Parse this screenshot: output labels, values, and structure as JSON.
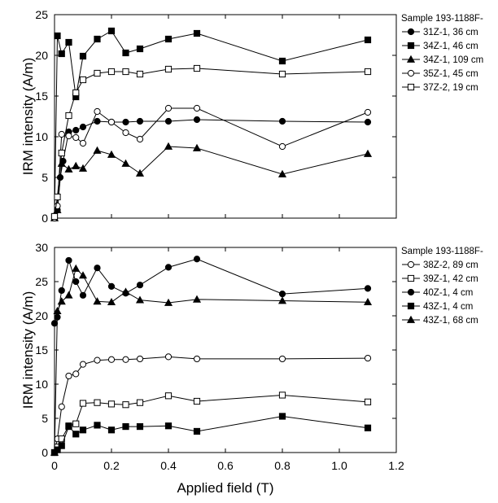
{
  "chart_data": [
    {
      "type": "scatter",
      "xlabel": "",
      "ylabel": "IRM intensity (A/m)",
      "xlim": [
        0,
        1.2
      ],
      "ylim": [
        0,
        25
      ],
      "xticks": [
        0,
        0.2,
        0.4,
        0.6,
        0.8,
        1.0,
        1.2
      ],
      "yticks": [
        0,
        5,
        10,
        15,
        20,
        25
      ],
      "xtick_labels_shown": false,
      "grid": false,
      "legend": {
        "placement": "right",
        "title": "Sample 193-1188F-"
      },
      "series": [
        {
          "name": "31Z-1, 36 cm",
          "marker": "circle",
          "fill": "filled",
          "points": [
            [
              0,
              0
            ],
            [
              0.01,
              1
            ],
            [
              0.02,
              5
            ],
            [
              0.03,
              7
            ],
            [
              0.05,
              10.6
            ],
            [
              0.075,
              10.8
            ],
            [
              0.1,
              11.2
            ],
            [
              0.15,
              11.9
            ],
            [
              0.2,
              11.8
            ],
            [
              0.25,
              11.8
            ],
            [
              0.3,
              11.9
            ],
            [
              0.4,
              11.9
            ],
            [
              0.5,
              12.1
            ],
            [
              0.8,
              11.9
            ],
            [
              1.1,
              11.8
            ]
          ]
        },
        {
          "name": "34Z-1, 46 cm",
          "marker": "square",
          "fill": "filled",
          "points": [
            [
              0,
              0.2
            ],
            [
              0.01,
              22.4
            ],
            [
              0.025,
              20.2
            ],
            [
              0.05,
              21.6
            ],
            [
              0.075,
              14.9
            ],
            [
              0.1,
              19.9
            ],
            [
              0.15,
              22
            ],
            [
              0.2,
              23
            ],
            [
              0.25,
              20.3
            ],
            [
              0.3,
              20.8
            ],
            [
              0.4,
              22
            ],
            [
              0.5,
              22.7
            ],
            [
              0.8,
              19.3
            ],
            [
              1.1,
              21.9
            ]
          ]
        },
        {
          "name": "34Z-1, 109 cm",
          "marker": "triangle",
          "fill": "filled",
          "points": [
            [
              0,
              0
            ],
            [
              0.01,
              1
            ],
            [
              0.025,
              6.7
            ],
            [
              0.05,
              6
            ],
            [
              0.075,
              6.4
            ],
            [
              0.1,
              6.1
            ],
            [
              0.15,
              8.3
            ],
            [
              0.2,
              7.8
            ],
            [
              0.25,
              6.7
            ],
            [
              0.3,
              5.5
            ],
            [
              0.4,
              8.8
            ],
            [
              0.5,
              8.6
            ],
            [
              0.8,
              5.4
            ],
            [
              1.1,
              7.9
            ]
          ]
        },
        {
          "name": "35Z-1, 45 cm",
          "marker": "circle",
          "fill": "open",
          "points": [
            [
              0,
              0
            ],
            [
              0.01,
              1.5
            ],
            [
              0.025,
              10.3
            ],
            [
              0.05,
              10.1
            ],
            [
              0.075,
              9.9
            ],
            [
              0.1,
              9.2
            ],
            [
              0.15,
              13.1
            ],
            [
              0.2,
              11.8
            ],
            [
              0.25,
              10.5
            ],
            [
              0.3,
              9.7
            ],
            [
              0.4,
              13.5
            ],
            [
              0.5,
              13.5
            ],
            [
              0.8,
              8.8
            ],
            [
              1.1,
              13
            ]
          ]
        },
        {
          "name": "37Z-2, 19 cm",
          "marker": "square",
          "fill": "open",
          "points": [
            [
              0,
              0.2
            ],
            [
              0.01,
              2.6
            ],
            [
              0.025,
              8
            ],
            [
              0.05,
              12.6
            ],
            [
              0.075,
              15.4
            ],
            [
              0.1,
              17
            ],
            [
              0.15,
              17.8
            ],
            [
              0.2,
              18
            ],
            [
              0.25,
              18
            ],
            [
              0.3,
              17.7
            ],
            [
              0.4,
              18.3
            ],
            [
              0.5,
              18.4
            ],
            [
              0.8,
              17.7
            ],
            [
              1.1,
              18
            ]
          ]
        }
      ]
    },
    {
      "type": "scatter",
      "xlabel": "Applied field (T)",
      "ylabel": "IRM intensity (A/m)",
      "xlim": [
        0,
        1.2
      ],
      "ylim": [
        0,
        30
      ],
      "xticks": [
        0,
        0.2,
        0.4,
        0.6,
        0.8,
        1.0,
        1.2
      ],
      "xtick_labels": [
        "0",
        "0.2",
        "0.4",
        "0.6",
        "0.8",
        "1.0",
        "1.2"
      ],
      "yticks": [
        0,
        5,
        10,
        15,
        20,
        25,
        30
      ],
      "xtick_labels_shown": true,
      "grid": false,
      "legend": {
        "placement": "right",
        "title": "Sample 193-1188F-"
      },
      "series": [
        {
          "name": "38Z-2, 89 cm",
          "marker": "circle",
          "fill": "open",
          "points": [
            [
              0,
              0
            ],
            [
              0.01,
              2
            ],
            [
              0.025,
              6.7
            ],
            [
              0.05,
              11.2
            ],
            [
              0.075,
              11.5
            ],
            [
              0.1,
              12.9
            ],
            [
              0.15,
              13.5
            ],
            [
              0.2,
              13.6
            ],
            [
              0.25,
              13.6
            ],
            [
              0.3,
              13.7
            ],
            [
              0.4,
              14
            ],
            [
              0.5,
              13.7
            ],
            [
              0.8,
              13.7
            ],
            [
              1.1,
              13.8
            ]
          ]
        },
        {
          "name": "39Z-1, 42 cm",
          "marker": "square",
          "fill": "open",
          "points": [
            [
              0,
              0
            ],
            [
              0.01,
              0.8
            ],
            [
              0.025,
              2
            ],
            [
              0.05,
              3.9
            ],
            [
              0.075,
              4.2
            ],
            [
              0.1,
              7.2
            ],
            [
              0.15,
              7.3
            ],
            [
              0.2,
              7.1
            ],
            [
              0.25,
              7
            ],
            [
              0.3,
              7.3
            ],
            [
              0.4,
              8.3
            ],
            [
              0.5,
              7.5
            ],
            [
              0.8,
              8.4
            ],
            [
              1.1,
              7.4
            ]
          ]
        },
        {
          "name": "40Z-1, 4 cm",
          "marker": "circle",
          "fill": "filled",
          "points": [
            [
              0,
              18.9
            ],
            [
              0.01,
              19.8
            ],
            [
              0.025,
              23.7
            ],
            [
              0.05,
              28.1
            ],
            [
              0.075,
              25
            ],
            [
              0.1,
              23
            ],
            [
              0.15,
              27
            ],
            [
              0.2,
              24.3
            ],
            [
              0.25,
              23.3
            ],
            [
              0.3,
              24.5
            ],
            [
              0.4,
              27.1
            ],
            [
              0.5,
              28.3
            ],
            [
              0.8,
              23.2
            ],
            [
              1.1,
              24
            ]
          ]
        },
        {
          "name": "43Z-1, 4 cm",
          "marker": "square",
          "fill": "filled",
          "points": [
            [
              0,
              0
            ],
            [
              0.01,
              0.4
            ],
            [
              0.025,
              1
            ],
            [
              0.05,
              3.8
            ],
            [
              0.075,
              2.7
            ],
            [
              0.1,
              3.3
            ],
            [
              0.15,
              4
            ],
            [
              0.2,
              3.3
            ],
            [
              0.25,
              3.8
            ],
            [
              0.3,
              3.8
            ],
            [
              0.4,
              3.9
            ],
            [
              0.5,
              3.1
            ],
            [
              0.8,
              5.3
            ],
            [
              1.1,
              3.6
            ]
          ]
        },
        {
          "name": "43Z-1, 68 cm",
          "marker": "triangle",
          "fill": "filled",
          "points": [
            [
              0,
              0
            ],
            [
              0.01,
              20.7
            ],
            [
              0.025,
              22.1
            ],
            [
              0.05,
              23
            ],
            [
              0.075,
              26.9
            ],
            [
              0.1,
              25.9
            ],
            [
              0.15,
              22.1
            ],
            [
              0.2,
              22
            ],
            [
              0.25,
              23.5
            ],
            [
              0.3,
              22.3
            ],
            [
              0.4,
              21.9
            ],
            [
              0.5,
              22.4
            ],
            [
              0.8,
              22.2
            ],
            [
              1.1,
              22
            ]
          ]
        }
      ]
    }
  ]
}
